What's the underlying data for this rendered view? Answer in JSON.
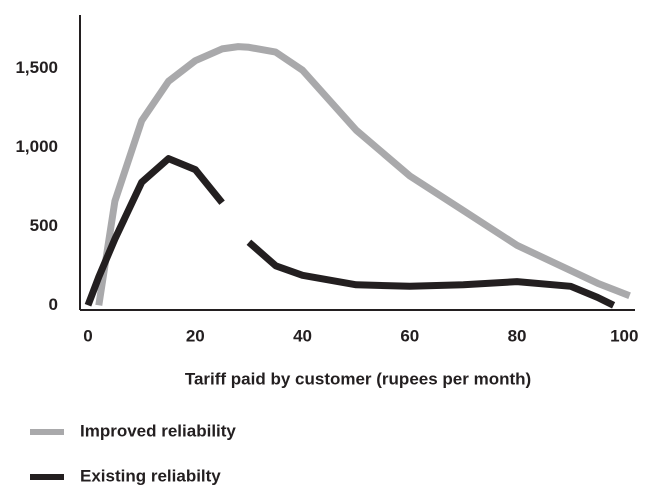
{
  "chart_data": {
    "type": "line",
    "x_label": "Tariff paid by customer (rupees per month)",
    "x": [
      0,
      2,
      5,
      10,
      15,
      20,
      25,
      28,
      30,
      35,
      40,
      50,
      60,
      70,
      80,
      90,
      95,
      98,
      101
    ],
    "series": [
      {
        "name": "Improved reliability",
        "color": "#a9a9ab",
        "values": [
          null,
          0,
          660,
          1170,
          1420,
          1550,
          1625,
          1640,
          1635,
          1605,
          1490,
          1110,
          820,
          600,
          380,
          220,
          140,
          100,
          60
        ]
      },
      {
        "name": "Existing reliabilty",
        "color": "#231f20",
        "values": [
          0,
          180,
          420,
          780,
          930,
          860,
          650,
          null,
          400,
          250,
          190,
          130,
          120,
          130,
          150,
          120,
          50,
          0,
          null
        ]
      }
    ],
    "xlim": [
      -1.5,
      102
    ],
    "ylim": [
      -30,
      1840
    ],
    "xticks": [
      0,
      20,
      40,
      60,
      80,
      100
    ],
    "yticks": [
      0,
      500,
      {
        "value": 1000,
        "label": "1,000"
      },
      {
        "value": 1500,
        "label": "1,500"
      }
    ]
  }
}
